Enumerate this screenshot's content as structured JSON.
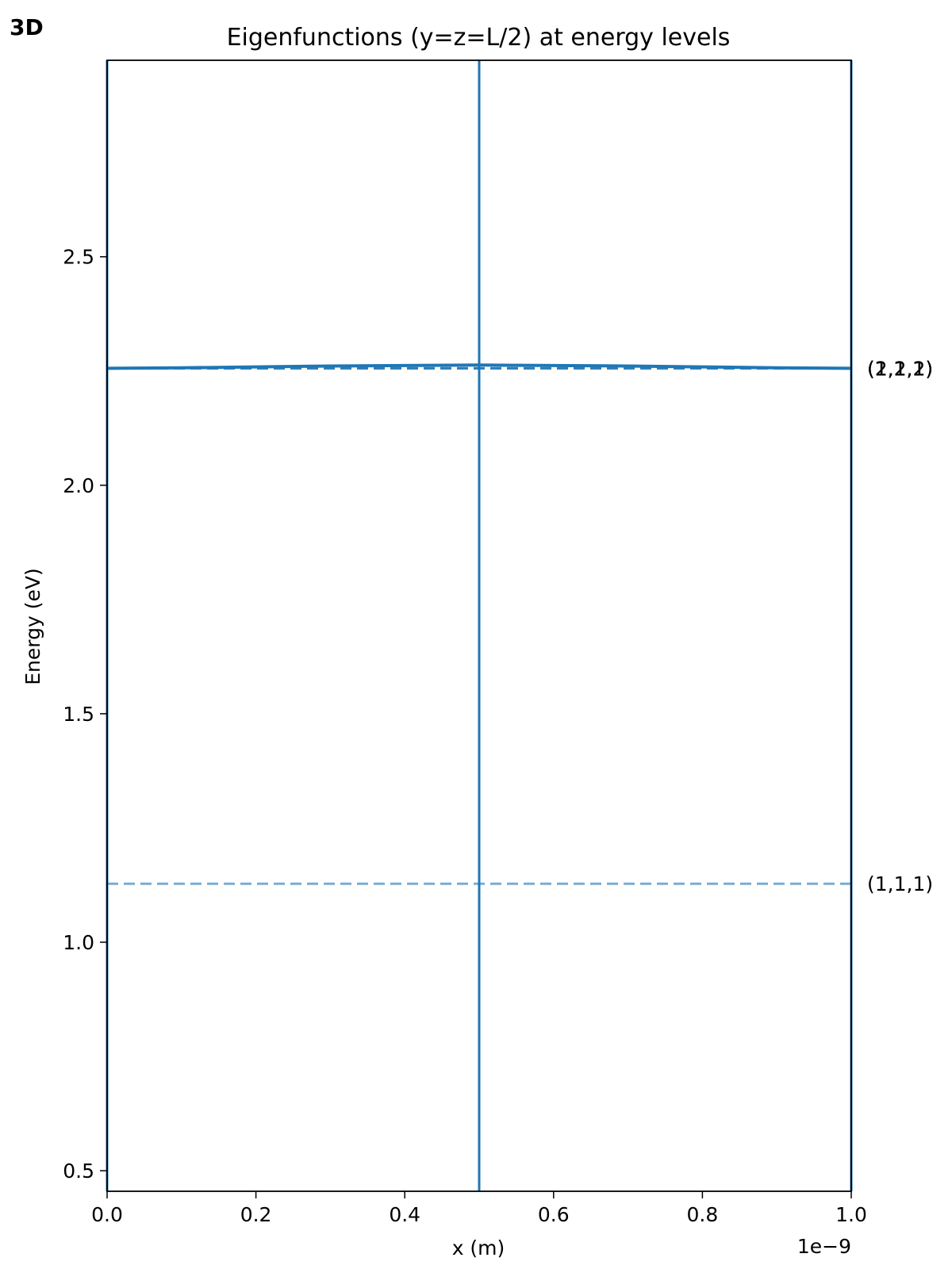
{
  "panel_tag": "3D",
  "chart_data": {
    "type": "line",
    "title": "Eigenfunctions (y=z=L/2) at energy levels",
    "xlabel": "x (m)",
    "ylabel": "Energy (eV)",
    "x_offset_text": "1e−9",
    "xlim": [
      0,
      1e-09
    ],
    "ylim": [
      0.455,
      2.93
    ],
    "x_ticks": [
      0,
      2e-10,
      4e-10,
      6e-10,
      8e-10,
      1e-09
    ],
    "x_tick_labels": [
      "0.0",
      "0.2",
      "0.4",
      "0.6",
      "0.8",
      "1.0"
    ],
    "y_ticks": [
      0.5,
      1.0,
      1.5,
      2.0,
      2.5
    ],
    "y_tick_labels": [
      "0.5",
      "1.0",
      "1.5",
      "2.0",
      "2.5"
    ],
    "grid": false,
    "color": "#1f77b4",
    "levels": [
      {
        "label": "(1,1,1)",
        "energy": 1.128
      },
      {
        "label": "(2,1,1)",
        "energy": 2.256
      },
      {
        "label": "(1,2,1)",
        "energy": 2.256
      },
      {
        "label": "(1,1,2)",
        "energy": 2.256
      }
    ],
    "series": [
      {
        "x": [
          0,
          0,
          5e-10,
          5e-10,
          1e-09,
          1e-09
        ],
        "y": [
          0.455,
          2.93,
          0.455,
          2.93,
          0.455,
          2.93
        ]
      },
      {
        "x": [
          0,
          1e-10,
          2e-10,
          3e-10,
          4e-10,
          5e-10,
          6e-10,
          7e-10,
          8e-10,
          9e-10,
          1e-09
        ],
        "y": [
          2.256,
          2.257,
          2.259,
          2.261,
          2.262,
          2.263,
          2.262,
          2.261,
          2.259,
          2.257,
          2.256
        ]
      }
    ]
  }
}
